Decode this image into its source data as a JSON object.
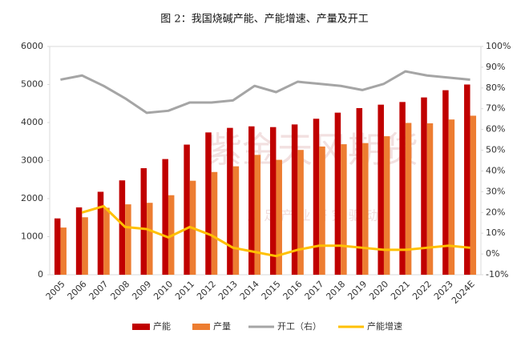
{
  "chart_data": {
    "type": "bar",
    "title": "图 2：我国烧碱产能、产能增速、产量及开工",
    "watermark": [
      "紫金天风期货",
      "立 足 产 业   研 究 驱 动"
    ],
    "categories": [
      "2005",
      "2006",
      "2007",
      "2008",
      "2009",
      "2010",
      "2011",
      "2012",
      "2013",
      "2014",
      "2015",
      "2016",
      "2017",
      "2018",
      "2019",
      "2020",
      "2021",
      "2022",
      "2023",
      "2024E"
    ],
    "ylim": [
      0,
      6000
    ],
    "yticks": [
      0,
      1000,
      2000,
      3000,
      4000,
      5000,
      6000
    ],
    "y2lim": [
      -10,
      100
    ],
    "y2ticks": [
      {
        "value": -10,
        "label": "-10%"
      },
      {
        "value": 0,
        "label": "0%"
      },
      {
        "value": 10,
        "label": "10%"
      },
      {
        "value": 20,
        "label": "20%"
      },
      {
        "value": 30,
        "label": "30%"
      },
      {
        "value": 40,
        "label": "40%"
      },
      {
        "value": 50,
        "label": "50%"
      },
      {
        "value": 60,
        "label": "60%"
      },
      {
        "value": 70,
        "label": "70%"
      },
      {
        "value": 80,
        "label": "80%"
      },
      {
        "value": 90,
        "label": "90%"
      },
      {
        "value": 100,
        "label": "100%"
      }
    ],
    "legend": "bottom",
    "series": [
      {
        "name": "产能",
        "type": "bar",
        "color": "#c00000",
        "values": [
          1480,
          1770,
          2180,
          2480,
          2800,
          3040,
          3420,
          3740,
          3860,
          3900,
          3880,
          3950,
          4100,
          4260,
          4380,
          4470,
          4540,
          4660,
          4850,
          5000
        ]
      },
      {
        "name": "产量",
        "type": "bar",
        "color": "#ed7d31",
        "values": [
          1240,
          1510,
          1760,
          1850,
          1890,
          2090,
          2470,
          2700,
          2850,
          3150,
          3020,
          3280,
          3370,
          3430,
          3460,
          3640,
          3990,
          3980,
          4080,
          4180
        ]
      },
      {
        "name": "开工（右）",
        "type": "line",
        "axis": "y2",
        "color": "#a5a5a5",
        "values": [
          84,
          86,
          81,
          75,
          68,
          69,
          73,
          73,
          74,
          81,
          78,
          83,
          82,
          81,
          79,
          82,
          88,
          86,
          85,
          84
        ]
      },
      {
        "name": "产能增速",
        "type": "line",
        "axis": "y2",
        "color": "#ffc000",
        "values": [
          null,
          20,
          23,
          13,
          12,
          8,
          13,
          9,
          3,
          1,
          -1,
          2,
          4,
          4,
          3,
          2,
          2,
          3,
          4,
          3
        ]
      }
    ]
  }
}
